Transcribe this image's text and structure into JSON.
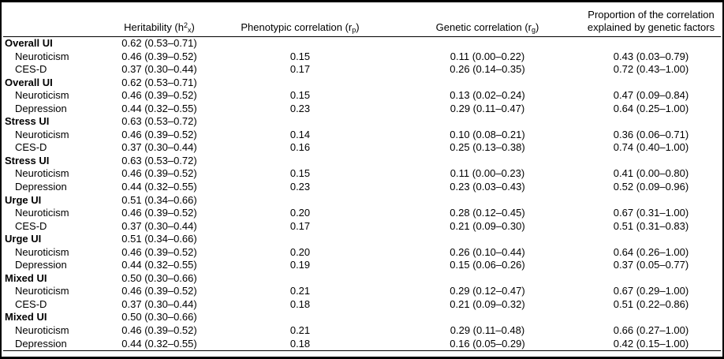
{
  "header": {
    "heritability": {
      "pre": "Heritability (h",
      "sup": "2",
      "sub": "x",
      "post": ")"
    },
    "phenotypic": {
      "pre": "Phenotypic correlation (r",
      "sub": "p",
      "post": ")"
    },
    "genetic": {
      "pre": "Genetic correlation (r",
      "sub": "g",
      "post": ")"
    },
    "proportion": {
      "line1": "Proportion of the correlation",
      "line2": "explained by genetic factors"
    }
  },
  "table": {
    "rows": [
      {
        "label": "Overall UI",
        "group": true,
        "h2x": "0.62 (0.53–0.71)",
        "rp": "",
        "rg": "",
        "prop": ""
      },
      {
        "label": "Neuroticism",
        "group": false,
        "h2x": "0.46 (0.39–0.52)",
        "rp": "0.15",
        "rg": "0.11 (0.00–0.22)",
        "prop": "0.43 (0.03–0.79)"
      },
      {
        "label": "CES-D",
        "group": false,
        "h2x": "0.37 (0.30–0.44)",
        "rp": "0.17",
        "rg": "0.26 (0.14–0.35)",
        "prop": "0.72 (0.43–1.00)"
      },
      {
        "label": "Overall UI",
        "group": true,
        "h2x": "0.62 (0.53–0.71)",
        "rp": "",
        "rg": "",
        "prop": ""
      },
      {
        "label": "Neuroticism",
        "group": false,
        "h2x": "0.46 (0.39–0.52)",
        "rp": "0.15",
        "rg": "0.13 (0.02–0.24)",
        "prop": "0.47 (0.09–0.84)"
      },
      {
        "label": "Depression",
        "group": false,
        "h2x": "0.44 (0.32–0.55)",
        "rp": "0.23",
        "rg": "0.29 (0.11–0.47)",
        "prop": "0.64 (0.25–1.00)"
      },
      {
        "label": "Stress UI",
        "group": true,
        "h2x": "0.63 (0.53–0.72)",
        "rp": "",
        "rg": "",
        "prop": ""
      },
      {
        "label": "Neuroticism",
        "group": false,
        "h2x": "0.46 (0.39–0.52)",
        "rp": "0.14",
        "rg": "0.10 (0.08–0.21)",
        "prop": "0.36 (0.06–0.71)"
      },
      {
        "label": "CES-D",
        "group": false,
        "h2x": "0.37 (0.30–0.44)",
        "rp": "0.16",
        "rg": "0.25 (0.13–0.38)",
        "prop": "0.74 (0.40–1.00)"
      },
      {
        "label": "Stress UI",
        "group": true,
        "h2x": "0.63 (0.53–0.72)",
        "rp": "",
        "rg": "",
        "prop": ""
      },
      {
        "label": "Neuroticism",
        "group": false,
        "h2x": "0.46 (0.39–0.52)",
        "rp": "0.15",
        "rg": "0.11 (0.00–0.23)",
        "prop": "0.41 (0.00–0.80)"
      },
      {
        "label": "Depression",
        "group": false,
        "h2x": "0.44 (0.32–0.55)",
        "rp": "0.23",
        "rg": "0.23 (0.03–0.43)",
        "prop": "0.52 (0.09–0.96)"
      },
      {
        "label": "Urge UI",
        "group": true,
        "h2x": "0.51 (0.34–0.66)",
        "rp": "",
        "rg": "",
        "prop": ""
      },
      {
        "label": "Neuroticism",
        "group": false,
        "h2x": "0.46 (0.39–0.52)",
        "rp": "0.20",
        "rg": "0.28 (0.12–0.45)",
        "prop": "0.67 (0.31–1.00)"
      },
      {
        "label": "CES-D",
        "group": false,
        "h2x": "0.37 (0.30–0.44)",
        "rp": "0.17",
        "rg": "0.21 (0.09–0.30)",
        "prop": "0.51 (0.31–0.83)"
      },
      {
        "label": "Urge UI",
        "group": true,
        "h2x": "0.51 (0.34–0.66)",
        "rp": "",
        "rg": "",
        "prop": ""
      },
      {
        "label": "Neuroticism",
        "group": false,
        "h2x": "0.46 (0.39–0.52)",
        "rp": "0.20",
        "rg": "0.26 (0.10–0.44)",
        "prop": "0.64 (0.26–1.00)"
      },
      {
        "label": "Depression",
        "group": false,
        "h2x": "0.44 (0.32–0.55)",
        "rp": "0.19",
        "rg": "0.15 (0.06–0.26)",
        "prop": "0.37 (0.05–0.77)"
      },
      {
        "label": "Mixed UI",
        "group": true,
        "h2x": "0.50 (0.30–0.66)",
        "rp": "",
        "rg": "",
        "prop": ""
      },
      {
        "label": "Neuroticism",
        "group": false,
        "h2x": "0.46 (0.39–0.52)",
        "rp": "0.21",
        "rg": "0.29 (0.12–0.47)",
        "prop": "0.67 (0.29–1.00)"
      },
      {
        "label": "CES-D",
        "group": false,
        "h2x": "0.37 (0.30–0.44)",
        "rp": "0.18",
        "rg": "0.21 (0.09–0.32)",
        "prop": "0.51 (0.22–0.86)"
      },
      {
        "label": "Mixed UI",
        "group": true,
        "h2x": "0.50 (0.30–0.66)",
        "rp": "",
        "rg": "",
        "prop": ""
      },
      {
        "label": "Neuroticism",
        "group": false,
        "h2x": "0.46 (0.39–0.52)",
        "rp": "0.21",
        "rg": "0.29 (0.11–0.48)",
        "prop": "0.66 (0.27–1.00)"
      },
      {
        "label": "Depression",
        "group": false,
        "h2x": "0.44 (0.32–0.55)",
        "rp": "0.18",
        "rg": "0.16 (0.05–0.29)",
        "prop": "0.42 (0.15–1.00)"
      }
    ]
  }
}
